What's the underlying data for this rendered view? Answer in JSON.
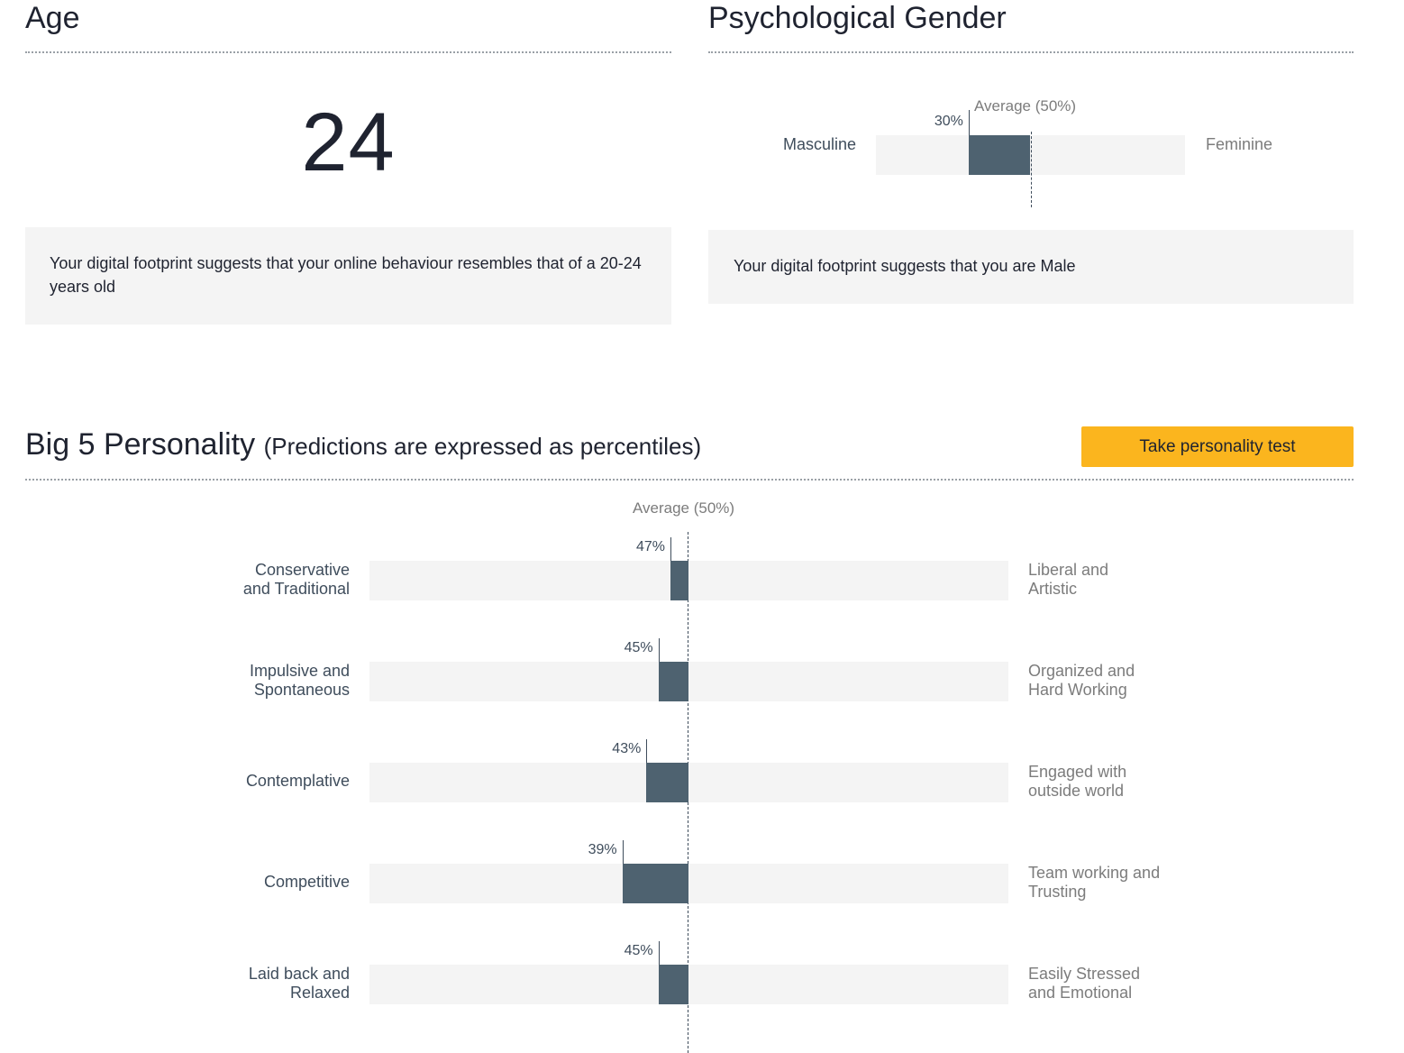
{
  "age": {
    "title": "Age",
    "value": "24",
    "message": "Your digital footprint suggests that your online behaviour resembles that of a 20-24 years old"
  },
  "gender": {
    "title": "Psychological Gender",
    "average_label": "Average (50%)",
    "left_label": "Masculine",
    "right_label": "Feminine",
    "percent": 30,
    "percent_label": "30%",
    "message": "Your digital footprint suggests that you are Male"
  },
  "personality": {
    "title": "Big 5 Personality",
    "subtitle": "(Predictions are expressed as percentiles)",
    "button_label": "Take personality test",
    "average_label": "Average (50%)",
    "traits": [
      {
        "left": "Conservative\nand Traditional",
        "right": "Liberal and\nArtistic",
        "percent": 47,
        "percent_label": "47%"
      },
      {
        "left": "Impulsive and\nSpontaneous",
        "right": "Organized and\nHard Working",
        "percent": 45,
        "percent_label": "45%"
      },
      {
        "left": "Contemplative",
        "right": "Engaged with\noutside world",
        "percent": 43,
        "percent_label": "43%"
      },
      {
        "left": "Competitive",
        "right": "Team working and\nTrusting",
        "percent": 39,
        "percent_label": "39%"
      },
      {
        "left": "Laid back and\nRelaxed",
        "right": "Easily Stressed\nand Emotional",
        "percent": 45,
        "percent_label": "45%"
      }
    ]
  },
  "colors": {
    "bar_fill": "#4e6270",
    "track": "#f4f4f4",
    "button": "#fbb51e"
  }
}
